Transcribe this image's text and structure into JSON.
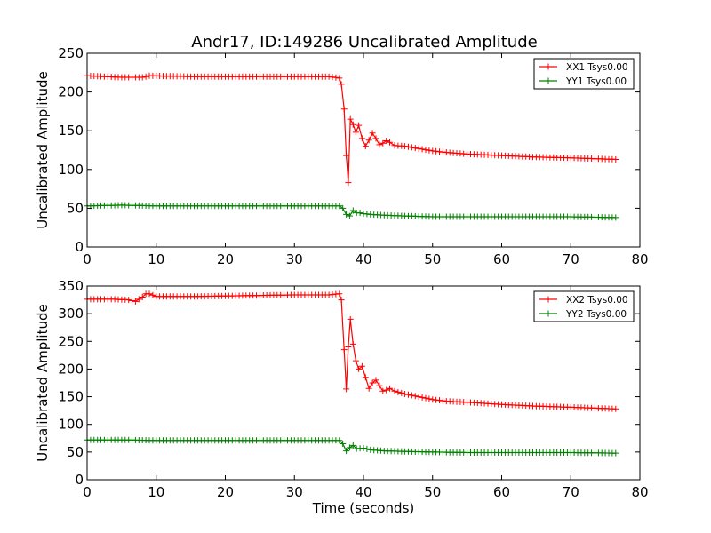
{
  "figure_title": "Andr17, ID:149286 Uncalibrated Amplitude",
  "chart_data": [
    {
      "type": "line",
      "title": "Andr17, ID:149286 Uncalibrated Amplitude",
      "xlabel": "",
      "ylabel": "Uncalibrated Amplitude",
      "xlim": [
        0,
        80
      ],
      "ylim": [
        0,
        250
      ],
      "xticks": [
        "0",
        "10",
        "20",
        "30",
        "40",
        "50",
        "60",
        "70",
        "80"
      ],
      "yticks": [
        "0",
        "50",
        "100",
        "150",
        "200",
        "250"
      ],
      "legend_position": "top-right",
      "grid": false,
      "series": [
        {
          "name": "XX1 Tsys0.00",
          "color": "#ff0000",
          "marker": "plus",
          "x": [
            0,
            5,
            8,
            9,
            15,
            25,
            30,
            35,
            36.5,
            36.8,
            37.2,
            37.5,
            37.8,
            38.1,
            38.5,
            38.9,
            39.3,
            39.8,
            40.3,
            40.8,
            41.3,
            41.8,
            42.3,
            42.8,
            43.3,
            43.8,
            44.5,
            46,
            48,
            50,
            52,
            55,
            60,
            65,
            70,
            76.5
          ],
          "y": [
            221,
            219,
            219,
            221,
            220,
            220,
            220,
            220,
            218,
            210,
            178,
            118,
            83,
            165,
            158,
            148,
            157,
            140,
            130,
            138,
            147,
            140,
            132,
            134,
            137,
            135,
            131,
            130,
            127,
            124,
            122,
            120,
            118,
            116,
            115,
            113
          ]
        },
        {
          "name": "YY1 Tsys0.00",
          "color": "#008000",
          "marker": "plus",
          "x": [
            0,
            5,
            10,
            20,
            30,
            36.5,
            37,
            37.5,
            38,
            38.5,
            39,
            39.5,
            40,
            41,
            43,
            46,
            50,
            55,
            60,
            65,
            70,
            76.5
          ],
          "y": [
            53,
            54,
            53,
            53,
            53,
            53,
            50,
            42,
            40,
            47,
            44,
            44,
            43,
            42,
            41,
            40,
            39,
            39,
            39,
            39,
            39,
            38
          ]
        }
      ]
    },
    {
      "type": "line",
      "title": "",
      "xlabel": "Time (seconds)",
      "ylabel": "Uncalibrated Amplitude",
      "xlim": [
        0,
        80
      ],
      "ylim": [
        0,
        350
      ],
      "xticks": [
        "0",
        "10",
        "20",
        "30",
        "40",
        "50",
        "60",
        "70",
        "80"
      ],
      "yticks": [
        "0",
        "50",
        "100",
        "150",
        "200",
        "250",
        "300",
        "350"
      ],
      "legend_position": "top-right",
      "grid": false,
      "series": [
        {
          "name": "XX2 Tsys0.00",
          "color": "#ff0000",
          "marker": "plus",
          "x": [
            0,
            4,
            6,
            7,
            8,
            8.5,
            9,
            10,
            12,
            15,
            20,
            25,
            30,
            35,
            36.5,
            36.8,
            37.2,
            37.5,
            37.8,
            38.1,
            38.5,
            38.9,
            39.3,
            39.8,
            40.3,
            40.8,
            41.3,
            41.8,
            42.3,
            42.8,
            43.3,
            43.8,
            44.5,
            46,
            48,
            50,
            52,
            55,
            60,
            65,
            70,
            76.5
          ],
          "y": [
            326,
            326,
            325,
            322,
            330,
            336,
            336,
            331,
            331,
            331,
            332,
            333,
            334,
            334,
            336,
            325,
            235,
            164,
            240,
            290,
            245,
            215,
            200,
            205,
            185,
            165,
            175,
            180,
            170,
            160,
            162,
            165,
            160,
            155,
            150,
            145,
            142,
            140,
            136,
            133,
            131,
            128
          ]
        },
        {
          "name": "YY2 Tsys0.00",
          "color": "#008000",
          "marker": "plus",
          "x": [
            0,
            5,
            10,
            20,
            30,
            36.5,
            37,
            37.5,
            38,
            38.5,
            39,
            40,
            41,
            43,
            46,
            50,
            55,
            60,
            65,
            70,
            76.5
          ],
          "y": [
            72,
            72,
            71,
            71,
            71,
            71,
            65,
            52,
            58,
            62,
            56,
            57,
            54,
            52,
            51,
            50,
            49,
            49,
            49,
            49,
            48
          ]
        }
      ]
    }
  ]
}
